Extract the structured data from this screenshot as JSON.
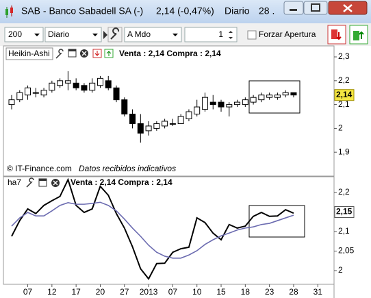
{
  "window": {
    "title": "SAB - Banco Sabadell SA (-)",
    "price": "2,14 (-0,47%)",
    "period": "Diario",
    "date": "28 ."
  },
  "toolbar": {
    "bars": "200",
    "period": "Diario",
    "mode": "A Mdo",
    "quantity": "1",
    "checkbox": "Forzar Apertura"
  },
  "chart_data": [
    {
      "type": "candlestick",
      "title": "Heikin-Ashi",
      "info": "Venta : 2,14 Compra : 2,14",
      "footer": "© IT-Finance.com",
      "footer_note": "Datos recibidos indicativos",
      "open": [
        2.1,
        2.12,
        2.14,
        2.15,
        2.14,
        2.16,
        2.18,
        2.19,
        2.19,
        2.18,
        2.16,
        2.18,
        2.2,
        2.17,
        2.12,
        2.06,
        2.02,
        1.99,
        2.0,
        2.01,
        2.02,
        2.02,
        2.04,
        2.06,
        2.08,
        2.11,
        2.11,
        2.09,
        2.1,
        2.1,
        2.11,
        2.12,
        2.13,
        2.13,
        2.14,
        2.15
      ],
      "high": [
        2.14,
        2.16,
        2.18,
        2.17,
        2.17,
        2.2,
        2.21,
        2.24,
        2.21,
        2.19,
        2.21,
        2.22,
        2.22,
        2.18,
        2.13,
        2.08,
        2.06,
        2.03,
        2.03,
        2.04,
        2.04,
        2.06,
        2.08,
        2.12,
        2.15,
        2.14,
        2.12,
        2.11,
        2.12,
        2.13,
        2.14,
        2.15,
        2.15,
        2.15,
        2.16,
        2.15
      ],
      "low": [
        2.08,
        2.11,
        2.12,
        2.13,
        2.13,
        2.15,
        2.17,
        2.16,
        2.16,
        2.15,
        2.15,
        2.17,
        2.16,
        2.11,
        2.05,
        2.0,
        1.94,
        1.97,
        1.99,
        2.0,
        2.01,
        2.02,
        2.03,
        2.05,
        2.07,
        2.08,
        2.07,
        2.05,
        2.09,
        2.09,
        2.1,
        2.11,
        2.12,
        2.12,
        2.13,
        2.13
      ],
      "close": [
        2.12,
        2.15,
        2.17,
        2.15,
        2.16,
        2.19,
        2.2,
        2.2,
        2.17,
        2.16,
        2.19,
        2.21,
        2.17,
        2.12,
        2.06,
        2.02,
        1.98,
        2.01,
        2.02,
        2.03,
        2.02,
        2.05,
        2.07,
        2.09,
        2.13,
        2.1,
        2.09,
        2.1,
        2.11,
        2.12,
        2.13,
        2.14,
        2.14,
        2.14,
        2.15,
        2.14
      ],
      "up_color": "#ffffff",
      "down_color": "#000000",
      "ylim": [
        1.81,
        2.33
      ],
      "yticks": [
        {
          "value": 2.3,
          "label": "2,3"
        },
        {
          "value": 2.2,
          "label": "2,2"
        },
        {
          "value": 2.1,
          "label": "2,1"
        },
        2,
        {
          "value": 1.9,
          "label": "1,9"
        }
      ],
      "last_price": {
        "value": 2.14,
        "label": "2,14"
      }
    },
    {
      "type": "line",
      "title": "ha7",
      "info": "Venta : 2,14 Compra : 2,14",
      "categories": [
        null,
        null,
        "07",
        null,
        null,
        "12",
        null,
        null,
        "17",
        null,
        null,
        "20",
        null,
        null,
        "27",
        null,
        null,
        "2013",
        null,
        null,
        "07",
        null,
        null,
        "10",
        null,
        null,
        "15",
        null,
        null,
        "18",
        null,
        null,
        "23",
        null,
        null,
        "28",
        null,
        null,
        "31"
      ],
      "series": [
        {
          "color": "#000000",
          "values": [
            2.088,
            2.128,
            2.158,
            2.146,
            2.167,
            2.179,
            2.19,
            2.233,
            2.167,
            2.149,
            2.158,
            2.216,
            2.193,
            2.146,
            2.109,
            2.061,
            2.005,
            1.979,
            2.018,
            2.019,
            2.047,
            2.056,
            2.06,
            2.135,
            2.123,
            2.096,
            2.079,
            2.118,
            2.109,
            2.114,
            2.139,
            2.149,
            2.139,
            2.14,
            2.156,
            2.147,
            null,
            null,
            null
          ]
        },
        {
          "color": "#6b6bb0",
          "values": [
            2.114,
            2.135,
            2.149,
            2.14,
            2.14,
            2.153,
            2.167,
            2.174,
            2.17,
            2.17,
            2.172,
            2.175,
            2.167,
            2.153,
            2.132,
            2.109,
            2.088,
            2.065,
            2.047,
            2.037,
            2.032,
            2.032,
            2.04,
            2.051,
            2.067,
            2.079,
            2.089,
            2.096,
            2.104,
            2.109,
            2.112,
            2.118,
            2.121,
            2.128,
            2.135,
            2.142,
            null,
            null,
            null
          ]
        }
      ],
      "ylim": [
        1.965,
        2.24
      ],
      "yticks": [
        {
          "value": 2.2,
          "label": "2,2"
        },
        {
          "value": 2.15,
          "label": "2,15"
        },
        {
          "value": 2.1,
          "label": "2,1"
        },
        {
          "value": 2.05,
          "label": "2,05"
        },
        2
      ],
      "last_value": {
        "value": 2.15,
        "label": "2,15"
      }
    }
  ]
}
